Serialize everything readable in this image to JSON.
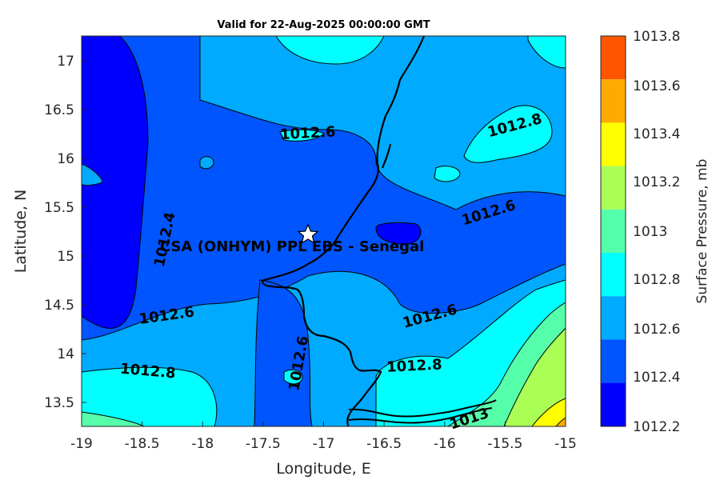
{
  "title": "Valid for 22-Aug-2025 00:00:00 GMT",
  "site_label": "CSA (ONHYM) PPL EBS  - Senegal",
  "axes": {
    "xlabel": "Longitude, E",
    "ylabel": "Latitude, N",
    "xticks": [
      "-19",
      "-18.5",
      "-18",
      "-17.5",
      "-17",
      "-16.5",
      "-16",
      "-15.5",
      "-15"
    ],
    "yticks": [
      "17",
      "16.5",
      "16",
      "15.5",
      "15",
      "14.5",
      "14",
      "13.5"
    ]
  },
  "colorbar": {
    "label": "Surface Pressure, mb",
    "ticks": [
      "1013.8",
      "1013.6",
      "1013.4",
      "1013.2",
      "1013",
      "1012.8",
      "1012.6",
      "1012.4",
      "1012.2"
    ],
    "colors": [
      "#ff5500",
      "#ffaa00",
      "#ffff00",
      "#aaff55",
      "#55ffaa",
      "#00ffff",
      "#00aaff",
      "#0055ff",
      "#0000ff"
    ]
  },
  "contour_labels": [
    "1012.6",
    "1012.8",
    "1012.6",
    "1012.4",
    "1012.6",
    "1012.6",
    "1012.8",
    "1012.6",
    "1012.8",
    "1013"
  ],
  "fill_colors": {
    "level_1": "#0000ff",
    "level_2": "#0055ff",
    "level_3": "#00aaff",
    "level_4": "#00ffff",
    "level_5": "#55ffaa",
    "level_6": "#aaff55",
    "level_7": "#ffff00",
    "level_8": "#ffaa00"
  }
}
